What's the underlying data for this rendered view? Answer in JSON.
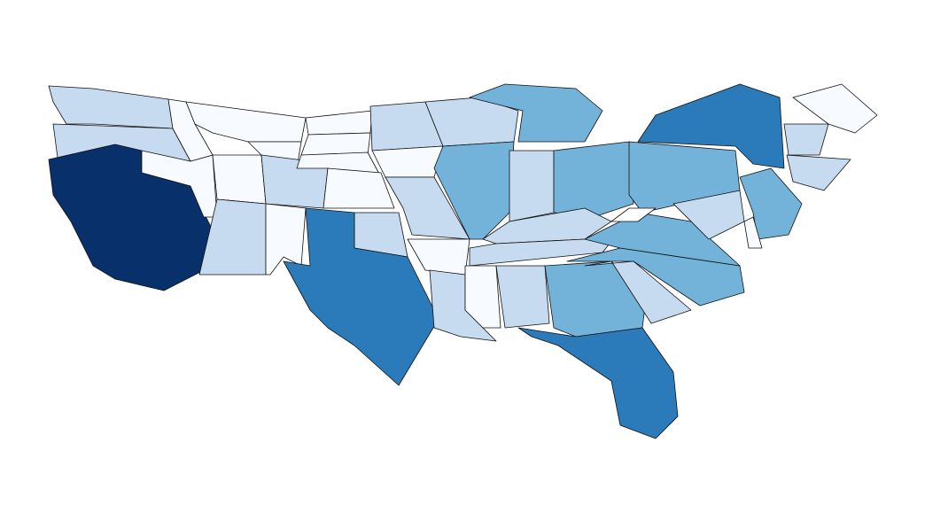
{
  "map": {
    "border_color": "#111111",
    "regions": [
      {
        "color": "#c6dbef"
      },
      {
        "color": "#c6dbef"
      },
      {
        "color": "#08306b"
      },
      {
        "color": "#f7fbff"
      },
      {
        "color": "#f7fbff"
      },
      {
        "color": "#f7fbff"
      },
      {
        "color": "#f7fbff"
      },
      {
        "color": "#f7fbff"
      },
      {
        "color": "#c6dbef"
      },
      {
        "color": "#c6dbef"
      },
      {
        "color": "#f7fbff"
      },
      {
        "color": "#f7fbff"
      },
      {
        "color": "#f7fbff"
      },
      {
        "color": "#f7fbff"
      },
      {
        "color": "#f7fbff"
      },
      {
        "color": "#c6dbef"
      },
      {
        "color": "#2b7bba"
      },
      {
        "color": "#c6dbef"
      },
      {
        "color": "#f7fbff"
      },
      {
        "color": "#c6dbef"
      },
      {
        "color": "#f7fbff"
      },
      {
        "color": "#c6dbef"
      },
      {
        "color": "#c6dbef"
      },
      {
        "color": "#74b3d9"
      },
      {
        "color": "#74b3d9"
      },
      {
        "color": "#c6dbef"
      },
      {
        "color": "#74b3d9"
      },
      {
        "color": "#c6dbef"
      },
      {
        "color": "#c6dbef"
      },
      {
        "color": "#f7fbff"
      },
      {
        "color": "#c6dbef"
      },
      {
        "color": "#74b3d9"
      },
      {
        "color": "#2b7bba"
      },
      {
        "color": "#c6dbef"
      },
      {
        "color": "#74b3d9"
      },
      {
        "color": "#74b3d9"
      },
      {
        "color": "#74b3d9"
      },
      {
        "color": "#2b7bba"
      },
      {
        "color": "#74b3d9"
      },
      {
        "color": "#c6dbef"
      },
      {
        "color": "#f7fbff"
      },
      {
        "color": "#f7fbff"
      },
      {
        "color": "#c6dbef"
      },
      {
        "color": "#c6dbef"
      },
      {
        "color": "#ffffff"
      }
    ]
  }
}
